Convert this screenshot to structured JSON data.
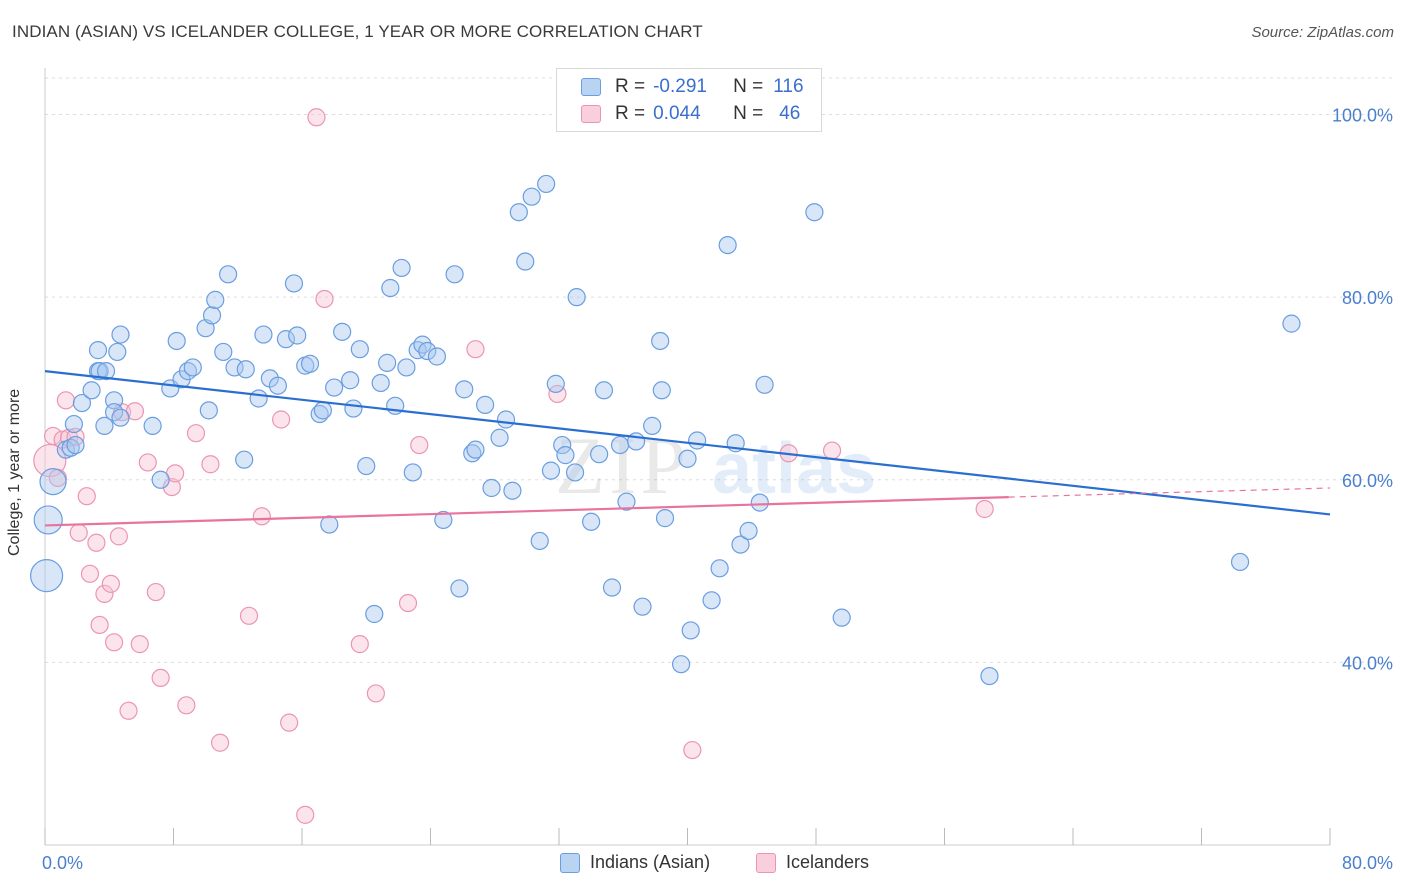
{
  "header": {
    "title": "INDIAN (ASIAN) VS ICELANDER COLLEGE, 1 YEAR OR MORE CORRELATION CHART",
    "source": "Source: ZipAtlas.com"
  },
  "legend": {
    "series1": {
      "r_label": "R =",
      "r_value": "-0.291",
      "n_label": "N =",
      "n_value": "116"
    },
    "series2": {
      "r_label": "R =",
      "r_value": "0.044",
      "n_label": "N =",
      "n_value": "46"
    }
  },
  "bottom_legend": {
    "series1": "Indians (Asian)",
    "series2": "Icelanders"
  },
  "watermark": {
    "zip": "ZIP",
    "atlas": "atlas"
  },
  "colors": {
    "blue_fill": "#a9c8f0",
    "blue_stroke": "#6a9ee0",
    "blue_line": "#2a6fd0",
    "pink_fill": "#f7c3d5",
    "pink_stroke": "#ec95b3",
    "pink_line": "#e8739d",
    "tick_text": "#4a7fd0",
    "grid": "#dddddd"
  },
  "chart_data": {
    "type": "scatter",
    "title": "INDIAN (ASIAN) VS ICELANDER COLLEGE, 1 YEAR OR MORE CORRELATION CHART",
    "xlabel": "",
    "ylabel": "College, 1 year or more",
    "xlim": [
      0,
      80
    ],
    "ylim": [
      20,
      104
    ],
    "x_tick_labels": [
      "0.0%",
      "80.0%"
    ],
    "y_ticks": [
      40,
      60,
      80,
      100
    ],
    "y_tick_labels": [
      "40.0%",
      "60.0%",
      "80.0%",
      "100.0%"
    ],
    "grid": true,
    "legend_position": "top-center",
    "series": [
      {
        "name": "Indians (Asian)",
        "R": -0.291,
        "N": 116,
        "trend": {
          "x": [
            0,
            80
          ],
          "y": [
            71.9,
            56.2
          ]
        },
        "points": [
          [
            0.1,
            49.5
          ],
          [
            0.2,
            55.6
          ],
          [
            0.5,
            59.8
          ],
          [
            1.3,
            63.3
          ],
          [
            1.6,
            63.5
          ],
          [
            1.9,
            63.8
          ],
          [
            1.8,
            66.1
          ],
          [
            2.3,
            68.4
          ],
          [
            3.3,
            71.9
          ],
          [
            3.4,
            71.9
          ],
          [
            2.9,
            69.8
          ],
          [
            4.7,
            75.9
          ],
          [
            4.5,
            74.0
          ],
          [
            3.8,
            71.9
          ],
          [
            3.3,
            74.2
          ],
          [
            3.7,
            65.9
          ],
          [
            4.3,
            68.7
          ],
          [
            4.3,
            67.4
          ],
          [
            4.7,
            66.8
          ],
          [
            6.7,
            65.9
          ],
          [
            7.2,
            60.0
          ],
          [
            7.8,
            70.0
          ],
          [
            8.2,
            75.2
          ],
          [
            8.5,
            71.0
          ],
          [
            8.9,
            71.9
          ],
          [
            9.2,
            72.3
          ],
          [
            10.0,
            76.6
          ],
          [
            10.2,
            67.6
          ],
          [
            10.4,
            78.0
          ],
          [
            10.6,
            79.7
          ],
          [
            11.1,
            74.0
          ],
          [
            11.4,
            82.5
          ],
          [
            11.8,
            72.3
          ],
          [
            12.4,
            62.2
          ],
          [
            12.5,
            72.1
          ],
          [
            13.3,
            68.9
          ],
          [
            13.6,
            75.9
          ],
          [
            14.0,
            71.1
          ],
          [
            14.5,
            70.3
          ],
          [
            15.0,
            75.4
          ],
          [
            15.5,
            81.5
          ],
          [
            15.7,
            75.8
          ],
          [
            16.2,
            72.5
          ],
          [
            16.5,
            72.7
          ],
          [
            17.1,
            67.2
          ],
          [
            17.3,
            67.6
          ],
          [
            17.7,
            55.1
          ],
          [
            18.0,
            70.1
          ],
          [
            18.5,
            76.2
          ],
          [
            19.0,
            70.9
          ],
          [
            19.2,
            67.8
          ],
          [
            19.6,
            74.3
          ],
          [
            20.0,
            61.5
          ],
          [
            20.5,
            45.3
          ],
          [
            20.9,
            70.6
          ],
          [
            21.3,
            72.8
          ],
          [
            21.5,
            81.0
          ],
          [
            21.8,
            68.1
          ],
          [
            22.2,
            83.2
          ],
          [
            22.5,
            72.3
          ],
          [
            22.9,
            60.8
          ],
          [
            23.2,
            74.2
          ],
          [
            23.5,
            74.8
          ],
          [
            23.8,
            74.1
          ],
          [
            24.4,
            73.5
          ],
          [
            24.8,
            55.6
          ],
          [
            25.5,
            82.5
          ],
          [
            25.8,
            48.1
          ],
          [
            26.1,
            69.9
          ],
          [
            26.6,
            62.9
          ],
          [
            26.8,
            63.3
          ],
          [
            27.4,
            68.2
          ],
          [
            27.8,
            59.1
          ],
          [
            28.3,
            64.6
          ],
          [
            28.7,
            66.6
          ],
          [
            29.1,
            58.8
          ],
          [
            29.5,
            89.3
          ],
          [
            29.9,
            83.9
          ],
          [
            30.3,
            91.0
          ],
          [
            30.8,
            53.3
          ],
          [
            31.2,
            92.4
          ],
          [
            31.5,
            61.0
          ],
          [
            31.8,
            70.5
          ],
          [
            32.2,
            63.8
          ],
          [
            32.4,
            62.7
          ],
          [
            33.0,
            60.8
          ],
          [
            33.1,
            80.0
          ],
          [
            34.0,
            55.4
          ],
          [
            34.5,
            62.8
          ],
          [
            34.8,
            69.8
          ],
          [
            35.3,
            48.2
          ],
          [
            35.8,
            63.8
          ],
          [
            36.2,
            57.6
          ],
          [
            36.8,
            64.2
          ],
          [
            37.2,
            46.1
          ],
          [
            37.8,
            65.9
          ],
          [
            38.3,
            75.2
          ],
          [
            38.4,
            69.8
          ],
          [
            38.6,
            55.8
          ],
          [
            39.6,
            39.8
          ],
          [
            40.0,
            62.3
          ],
          [
            40.2,
            43.5
          ],
          [
            40.6,
            64.3
          ],
          [
            41.5,
            46.8
          ],
          [
            42.0,
            50.3
          ],
          [
            42.5,
            85.7
          ],
          [
            43.0,
            64.0
          ],
          [
            43.3,
            52.9
          ],
          [
            43.8,
            54.4
          ],
          [
            44.5,
            57.5
          ],
          [
            44.8,
            70.4
          ],
          [
            47.9,
            89.3
          ],
          [
            49.6,
            44.9
          ],
          [
            58.8,
            38.5
          ],
          [
            74.4,
            51.0
          ],
          [
            77.6,
            77.1
          ]
        ]
      },
      {
        "name": "Icelanders",
        "R": 0.044,
        "N": 46,
        "trend": {
          "x": [
            0,
            60
          ],
          "y": [
            55.0,
            58.1
          ]
        },
        "trend_dashed": {
          "x": [
            60,
            80
          ],
          "y": [
            58.1,
            59.1
          ]
        },
        "points": [
          [
            0.3,
            62.1
          ],
          [
            0.5,
            64.8
          ],
          [
            0.8,
            60.2
          ],
          [
            1.1,
            64.4
          ],
          [
            1.3,
            68.7
          ],
          [
            1.5,
            64.6
          ],
          [
            1.9,
            64.7
          ],
          [
            2.1,
            54.2
          ],
          [
            2.6,
            58.2
          ],
          [
            2.8,
            49.7
          ],
          [
            3.2,
            53.1
          ],
          [
            3.4,
            44.1
          ],
          [
            3.7,
            47.5
          ],
          [
            4.1,
            48.6
          ],
          [
            4.3,
            42.2
          ],
          [
            4.6,
            53.8
          ],
          [
            4.8,
            67.4
          ],
          [
            5.2,
            34.7
          ],
          [
            5.6,
            67.5
          ],
          [
            5.9,
            42.0
          ],
          [
            6.4,
            61.9
          ],
          [
            6.9,
            47.7
          ],
          [
            7.2,
            38.3
          ],
          [
            7.9,
            59.2
          ],
          [
            8.1,
            60.7
          ],
          [
            8.8,
            35.3
          ],
          [
            9.4,
            65.1
          ],
          [
            10.3,
            61.7
          ],
          [
            10.9,
            31.2
          ],
          [
            12.7,
            45.1
          ],
          [
            13.5,
            56.0
          ],
          [
            14.7,
            66.6
          ],
          [
            15.2,
            33.4
          ],
          [
            16.2,
            23.3
          ],
          [
            16.9,
            99.7
          ],
          [
            17.4,
            79.8
          ],
          [
            19.6,
            42.0
          ],
          [
            20.6,
            36.6
          ],
          [
            22.6,
            46.5
          ],
          [
            23.3,
            63.8
          ],
          [
            26.8,
            74.3
          ],
          [
            31.9,
            69.4
          ],
          [
            40.3,
            30.4
          ],
          [
            46.3,
            62.9
          ],
          [
            49.0,
            63.2
          ],
          [
            58.5,
            56.8
          ]
        ]
      }
    ]
  }
}
